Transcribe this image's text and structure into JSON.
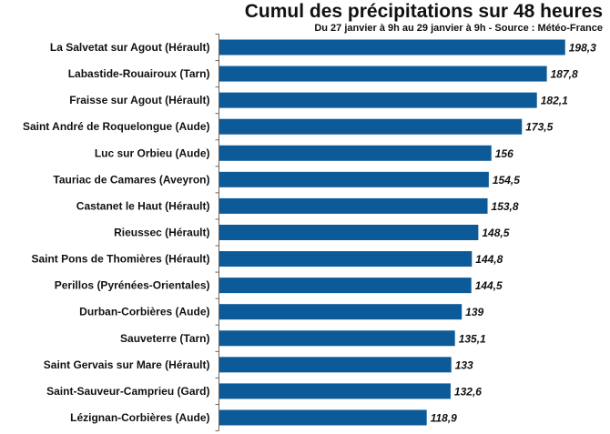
{
  "chart_data": {
    "type": "bar",
    "orientation": "horizontal",
    "title": "Cumul des précipitations sur 48 heures",
    "subtitle": "Du 27 janvier à 9h au 29 janvier à 9h - Source : Météo-France",
    "xlabel": "",
    "ylabel": "",
    "xlim": [
      0,
      200
    ],
    "bar_color": "#0d5a98",
    "categories": [
      "La Salvetat sur Agout (Hérault)",
      "Labastide-Rouairoux (Tarn)",
      "Fraisse sur Agout (Hérault)",
      "Saint André de Roquelongue (Aude)",
      "Luc sur Orbieu (Aude)",
      "Tauriac de Camares (Aveyron)",
      "Castanet le Haut (Hérault)",
      "Rieussec (Hérault)",
      "Saint Pons de Thomières (Hérault)",
      "Perillos (Pyrénées-Orientales)",
      "Durban-Corbières (Aude)",
      "Sauveterre (Tarn)",
      "Saint Gervais sur Mare (Hérault)",
      "Saint-Sauveur-Camprieu (Gard)",
      "Lézignan-Corbières (Aude)"
    ],
    "values": [
      198.3,
      187.8,
      182.1,
      173.5,
      156,
      154.5,
      153.8,
      148.5,
      144.8,
      144.5,
      139,
      135.1,
      133,
      132.6,
      118.9
    ],
    "value_labels": [
      "198,3",
      "187,8",
      "182,1",
      "173,5",
      "156",
      "154,5",
      "153,8",
      "148,5",
      "144,8",
      "144,5",
      "139",
      "135,1",
      "133",
      "132,6",
      "118,9"
    ]
  }
}
